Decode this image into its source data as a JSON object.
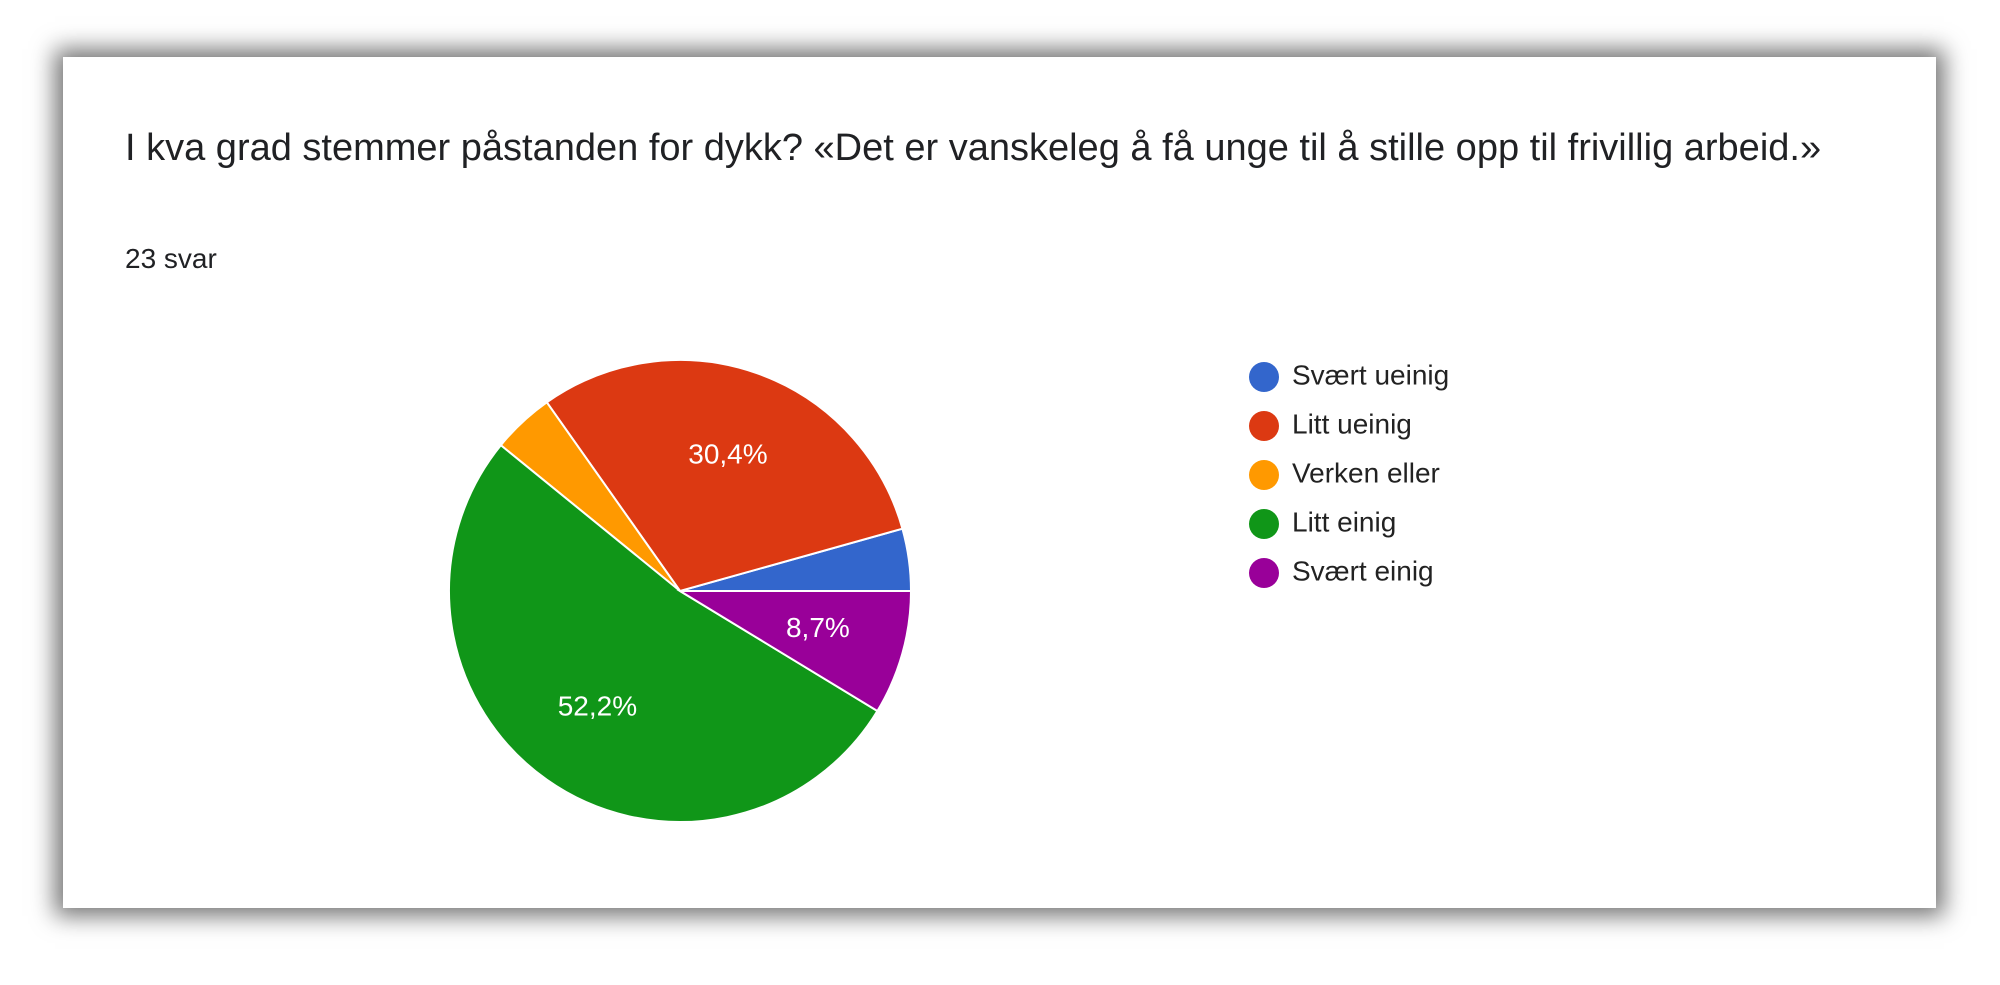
{
  "question": {
    "title": "I kva grad stemmer påstanden for dykk? «Det er vanskeleg å få unge til å stille opp til frivillig arbeid.»",
    "response_count": "23 svar"
  },
  "chart_data": {
    "type": "pie",
    "title": "I kva grad stemmer påstanden for dykk? «Det er vanskeleg å få unge til å stille opp til frivillig arbeid.»",
    "legend_position": "right",
    "slices": [
      {
        "label": "Svært ueinig",
        "count": 1,
        "percent": 4.3,
        "value_label": "",
        "color": "#3366cc"
      },
      {
        "label": "Litt ueinig",
        "count": 7,
        "percent": 30.4,
        "value_label": "30,4%",
        "color": "#dc3912"
      },
      {
        "label": "Verken eller",
        "count": 1,
        "percent": 4.3,
        "value_label": "",
        "color": "#ff9900"
      },
      {
        "label": "Litt einig",
        "count": 12,
        "percent": 52.2,
        "value_label": "52,2%",
        "color": "#109618"
      },
      {
        "label": "Svært einig",
        "count": 2,
        "percent": 8.7,
        "value_label": "8,7%",
        "color": "#990099"
      }
    ]
  }
}
